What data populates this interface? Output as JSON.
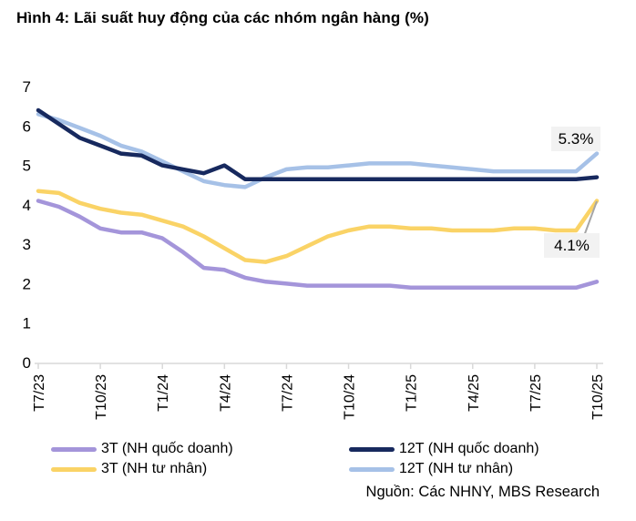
{
  "title": "Hình 4: Lãi suất huy động của các nhóm ngân hàng (%)",
  "source": "Nguồn: Các NHNY, MBS Research",
  "colors": {
    "axis": "#d9d9d9",
    "annotation_bg": "#f2f2f2",
    "leader_line": "#a6a6a6",
    "purple": "#a495da",
    "yellow": "#fad366",
    "navy": "#17295e",
    "light_blue": "#a6c1e7"
  },
  "chart_data": {
    "type": "line",
    "title": "Hình 4: Lãi suất huy động của các nhóm ngân hàng (%)",
    "xlabel": "",
    "ylabel": "",
    "ylim": [
      0,
      7
    ],
    "y_ticks": [
      0,
      1,
      2,
      3,
      4,
      5,
      6,
      7
    ],
    "grid": false,
    "legend_position": "bottom",
    "x_unit": "month",
    "categories": [
      "T7/23",
      "T10/23",
      "T1/24",
      "T4/24",
      "T7/24",
      "T10/24",
      "T1/25",
      "T4/25",
      "T7/25",
      "T10/25"
    ],
    "tick_indices": [
      0,
      3,
      6,
      9,
      12,
      15,
      18,
      21,
      24,
      27
    ],
    "series": [
      {
        "name": "3T (NH quốc doanh)",
        "color": "#a495da",
        "values": [
          4.1,
          3.95,
          3.7,
          3.4,
          3.3,
          3.3,
          3.15,
          2.8,
          2.4,
          2.35,
          2.15,
          2.05,
          2.0,
          1.95,
          1.95,
          1.95,
          1.95,
          1.95,
          1.9,
          1.9,
          1.9,
          1.9,
          1.9,
          1.9,
          1.9,
          1.9,
          1.9,
          2.05
        ]
      },
      {
        "name": "3T (NH tư nhân)",
        "color": "#fad366",
        "values": [
          4.35,
          4.3,
          4.05,
          3.9,
          3.8,
          3.75,
          3.6,
          3.45,
          3.2,
          2.9,
          2.6,
          2.55,
          2.7,
          2.95,
          3.2,
          3.35,
          3.45,
          3.45,
          3.4,
          3.4,
          3.35,
          3.35,
          3.35,
          3.4,
          3.4,
          3.35,
          3.35,
          4.1
        ]
      },
      {
        "name": "12T (NH quốc doanh)",
        "color": "#17295e",
        "values": [
          6.4,
          6.05,
          5.7,
          5.5,
          5.3,
          5.25,
          5.0,
          4.9,
          4.8,
          5.0,
          4.65,
          4.65,
          4.65,
          4.65,
          4.65,
          4.65,
          4.65,
          4.65,
          4.65,
          4.65,
          4.65,
          4.65,
          4.65,
          4.65,
          4.65,
          4.65,
          4.65,
          4.7
        ]
      },
      {
        "name": "12T (NH tư nhân)",
        "color": "#a6c1e7",
        "values": [
          6.3,
          6.15,
          5.95,
          5.75,
          5.5,
          5.35,
          5.1,
          4.85,
          4.6,
          4.5,
          4.45,
          4.7,
          4.9,
          4.95,
          4.95,
          5.0,
          5.05,
          5.05,
          5.05,
          5.0,
          4.95,
          4.9,
          4.85,
          4.85,
          4.85,
          4.85,
          4.85,
          5.3
        ]
      }
    ],
    "annotations": [
      {
        "text": "5.3%",
        "series": "12T (NH tư nhân)",
        "value": 5.3
      },
      {
        "text": "4.1%",
        "series": "3T (NH tư nhân)",
        "value": 4.1
      }
    ]
  },
  "legend": {
    "items": [
      {
        "label": "3T (NH quốc doanh)"
      },
      {
        "label": "3T (NH tư nhân)"
      },
      {
        "label": "12T (NH quốc doanh)"
      },
      {
        "label": "12T (NH tư nhân)"
      }
    ]
  }
}
